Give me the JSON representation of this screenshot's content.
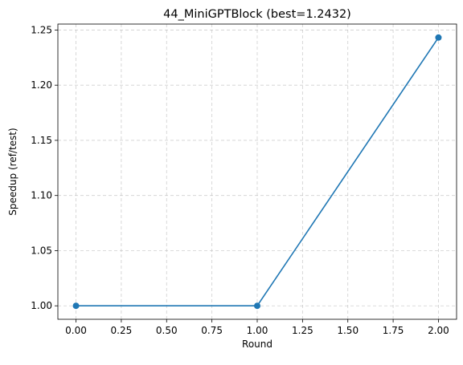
{
  "chart_data": {
    "type": "line",
    "title": "44_MiniGPTBlock (best=1.2432)",
    "xlabel": "Round",
    "ylabel": "Speedup (ref/test)",
    "xlim": [
      -0.1,
      2.1
    ],
    "ylim": [
      0.9878,
      1.2554
    ],
    "xticks": [
      0.0,
      0.25,
      0.5,
      0.75,
      1.0,
      1.25,
      1.5,
      1.75,
      2.0
    ],
    "xtick_labels": [
      "0.00",
      "0.25",
      "0.50",
      "0.75",
      "1.00",
      "1.25",
      "1.50",
      "1.75",
      "2.00"
    ],
    "yticks": [
      1.0,
      1.05,
      1.1,
      1.15,
      1.2,
      1.25
    ],
    "ytick_labels": [
      "1.00",
      "1.05",
      "1.10",
      "1.15",
      "1.20",
      "1.25"
    ],
    "grid": true,
    "series": [
      {
        "color": "#1f77b4",
        "marker": "circle",
        "x": [
          0,
          1,
          2
        ],
        "y": [
          1.0,
          1.0,
          1.2432
        ]
      }
    ]
  }
}
